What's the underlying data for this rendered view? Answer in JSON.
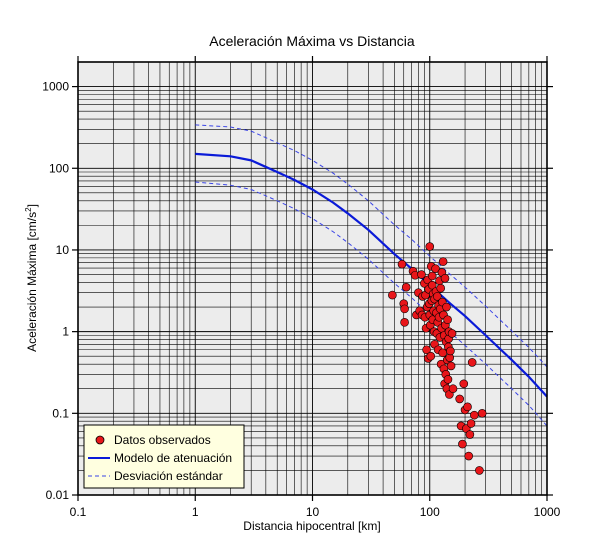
{
  "chart_data": {
    "type": "scatter",
    "title": "Aceleración Máxima vs Distancia",
    "xlabel": "Distancia hipocentral [km]",
    "ylabel_main": "Aceleración Máxima [cm/s",
    "ylabel_sup": "2",
    "ylabel_end": "]",
    "x_scale": "log",
    "y_scale": "log",
    "xlim": [
      0.1,
      1000
    ],
    "ylim": [
      0.01,
      2000
    ],
    "x_ticks": [
      {
        "value": 0.1,
        "label": "0.1"
      },
      {
        "value": 1,
        "label": "1"
      },
      {
        "value": 10,
        "label": "10"
      },
      {
        "value": 100,
        "label": "100"
      },
      {
        "value": 1000,
        "label": "1000"
      }
    ],
    "y_ticks": [
      {
        "value": 0.01,
        "label": "0.01"
      },
      {
        "value": 0.1,
        "label": "0.1"
      },
      {
        "value": 1,
        "label": "1"
      },
      {
        "value": 10,
        "label": "10"
      },
      {
        "value": 100,
        "label": "100"
      },
      {
        "value": 1000,
        "label": "1000"
      }
    ],
    "grid": true,
    "legend_position": "bottom-left",
    "plot_background": "#ececec",
    "legend_background": "#ffffe0",
    "series": [
      {
        "name": "Datos observados",
        "kind": "points",
        "color": "#e8161a",
        "points": [
          [
            48,
            2.8
          ],
          [
            58,
            6.7
          ],
          [
            60,
            2.2
          ],
          [
            61,
            1.9
          ],
          [
            61,
            1.3
          ],
          [
            63,
            3.5
          ],
          [
            72,
            5.5
          ],
          [
            75,
            4.9
          ],
          [
            77,
            1.6
          ],
          [
            80,
            3
          ],
          [
            82,
            1.8
          ],
          [
            85,
            5
          ],
          [
            86,
            1.6
          ],
          [
            87,
            2.7
          ],
          [
            90,
            3.9
          ],
          [
            91,
            1.5
          ],
          [
            92,
            2.8
          ],
          [
            93,
            1.1
          ],
          [
            94,
            0.6
          ],
          [
            95,
            2
          ],
          [
            96,
            4.3
          ],
          [
            97,
            0.47
          ],
          [
            98,
            3.3
          ],
          [
            99,
            2.2
          ],
          [
            100,
            1.6
          ],
          [
            100,
            11
          ],
          [
            101,
            1.2
          ],
          [
            102,
            0.5
          ],
          [
            103,
            6.3
          ],
          [
            104,
            2.4
          ],
          [
            105,
            3.7
          ],
          [
            105,
            4.8
          ],
          [
            106,
            1.4
          ],
          [
            107,
            2.9
          ],
          [
            108,
            1.8
          ],
          [
            109,
            1
          ],
          [
            110,
            2.5
          ],
          [
            110,
            0.7
          ],
          [
            112,
            5.9
          ],
          [
            113,
            3.1
          ],
          [
            114,
            1.7
          ],
          [
            115,
            0.95
          ],
          [
            116,
            2.7
          ],
          [
            117,
            1.3
          ],
          [
            118,
            0.6
          ],
          [
            119,
            2.1
          ],
          [
            120,
            1.5
          ],
          [
            121,
            4.2
          ],
          [
            122,
            0.85
          ],
          [
            123,
            1.9
          ],
          [
            124,
            3.4
          ],
          [
            125,
            0.4
          ],
          [
            126,
            1.1
          ],
          [
            127,
            5.3
          ],
          [
            128,
            2.3
          ],
          [
            129,
            0.55
          ],
          [
            130,
            7.2
          ],
          [
            131,
            1.6
          ],
          [
            132,
            0.35
          ],
          [
            133,
            0.9
          ],
          [
            134,
            0.23
          ],
          [
            135,
            4.5
          ],
          [
            136,
            1.2
          ],
          [
            137,
            0.3
          ],
          [
            138,
            0.75
          ],
          [
            139,
            2
          ],
          [
            140,
            0.2
          ],
          [
            141,
            0.45
          ],
          [
            142,
            1.4
          ],
          [
            143,
            0.26
          ],
          [
            144,
            0.65
          ],
          [
            145,
            0.82
          ],
          [
            146,
            1
          ],
          [
            147,
            0.17
          ],
          [
            148,
            0.48
          ],
          [
            150,
            0.58
          ],
          [
            152,
            0.38
          ],
          [
            155,
            0.95
          ],
          [
            158,
            0.2
          ],
          [
            180,
            0.15
          ],
          [
            185,
            0.07
          ],
          [
            190,
            0.042
          ],
          [
            195,
            0.23
          ],
          [
            200,
            0.11
          ],
          [
            205,
            0.065
          ],
          [
            210,
            0.12
          ],
          [
            215,
            0.03
          ],
          [
            220,
            0.055
          ],
          [
            225,
            0.075
          ],
          [
            230,
            0.42
          ],
          [
            240,
            0.095
          ],
          [
            265,
            0.02
          ],
          [
            280,
            0.1
          ]
        ]
      },
      {
        "name": "Modelo de atenuación",
        "kind": "line",
        "color": "#0a1ad8",
        "x": [
          1,
          2,
          3,
          5,
          7,
          10,
          15,
          20,
          30,
          50,
          70,
          100,
          150,
          200,
          300,
          500,
          700,
          1000
        ],
        "y": [
          150,
          140,
          125,
          90,
          72,
          55,
          38,
          28,
          17.6,
          8.9,
          5.9,
          3.7,
          2.2,
          1.55,
          0.9,
          0.45,
          0.28,
          0.16
        ]
      },
      {
        "name": "Desviación estándar",
        "kind": "dashed",
        "color": "#3a44e6",
        "lines": [
          {
            "x": [
              1,
              2,
              3,
              5,
              7,
              10,
              15,
              20,
              30,
              50,
              70,
              100,
              150,
              200,
              300,
              500,
              700,
              1000
            ],
            "y": [
              340,
              320,
              285,
              205,
              165,
              125,
              87,
              64,
              40,
              20.3,
              13.5,
              8.4,
              5,
              3.5,
              2.05,
              1.02,
              0.64,
              0.37
            ]
          },
          {
            "x": [
              1,
              2,
              3,
              5,
              7,
              10,
              15,
              20,
              30,
              50,
              70,
              100,
              150,
              200,
              300,
              500,
              700,
              1000
            ],
            "y": [
              68,
              62,
              55,
              40,
              32,
              24.2,
              16.7,
              12.3,
              7.7,
              3.9,
              2.6,
              1.62,
              0.97,
              0.68,
              0.4,
              0.2,
              0.125,
              0.07
            ]
          }
        ]
      }
    ]
  }
}
